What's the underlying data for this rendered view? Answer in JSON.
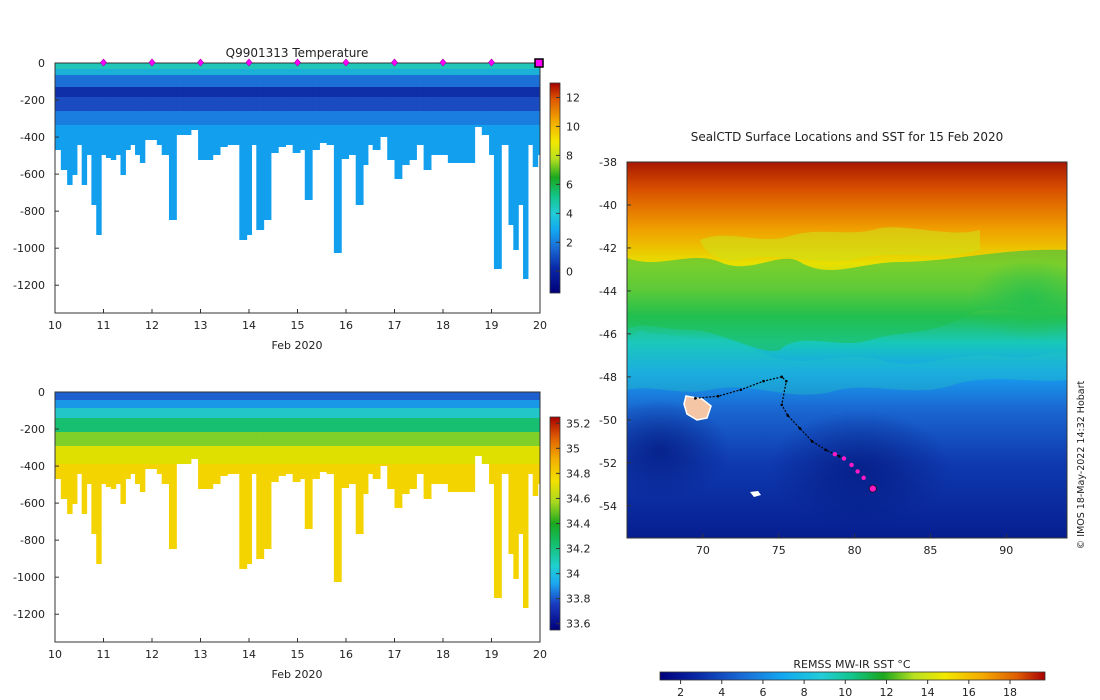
{
  "chart_data": [
    {
      "type": "heatmap",
      "name": "temperature-section",
      "title": "Q9901313  Temperature",
      "xlabel": "Feb 2020",
      "ylabel": "",
      "xlim": [
        10,
        20
      ],
      "ylim": [
        -1350,
        0
      ],
      "xticks": [
        "10",
        "11",
        "12",
        "13",
        "14",
        "15",
        "16",
        "17",
        "18",
        "19",
        "20"
      ],
      "yticks": [
        "0",
        "-200",
        "-400",
        "-600",
        "-800",
        "-1000",
        "-1200"
      ],
      "colorbar": {
        "ticks": [
          "12",
          "10",
          "8",
          "6",
          "4",
          "2",
          "0"
        ],
        "min": -1.5,
        "max": 13
      },
      "markers_days": [
        11,
        12,
        13,
        14,
        15,
        16,
        17,
        18,
        19
      ],
      "last_marker_day": 20
    },
    {
      "type": "heatmap",
      "name": "salinity-section",
      "title": "",
      "xlabel": "Feb 2020",
      "xlim": [
        10,
        20
      ],
      "ylim": [
        -1350,
        0
      ],
      "xticks": [
        "10",
        "11",
        "12",
        "13",
        "14",
        "15",
        "16",
        "17",
        "18",
        "19",
        "20"
      ],
      "yticks": [
        "0",
        "-200",
        "-400",
        "-600",
        "-800",
        "-1000",
        "-1200"
      ],
      "colorbar": {
        "ticks": [
          "35.2",
          "35",
          "34.8",
          "34.6",
          "34.4",
          "34.2",
          "34",
          "33.8",
          "33.6"
        ],
        "min": 33.55,
        "max": 35.25
      }
    },
    {
      "type": "heatmap",
      "name": "sst-map",
      "title": "SealCTD Surface Locations and SST for 15 Feb 2020",
      "xlim": [
        65,
        94
      ],
      "ylim": [
        -55.5,
        -38
      ],
      "xticks": [
        "70",
        "75",
        "80",
        "85",
        "90"
      ],
      "yticks": [
        "-38",
        "-40",
        "-42",
        "-44",
        "-46",
        "-48",
        "-50",
        "-52",
        "-54"
      ],
      "colorbar": {
        "label": "REMSS MW-IR SST °C",
        "ticks": [
          "2",
          "4",
          "6",
          "8",
          "10",
          "12",
          "14",
          "16",
          "18"
        ],
        "min": 1,
        "max": 19.7
      },
      "track": [
        [
          69.5,
          -49.0
        ],
        [
          71,
          -48.9
        ],
        [
          72.5,
          -48.6
        ],
        [
          74,
          -48.2
        ],
        [
          75.2,
          -48.0
        ],
        [
          75.5,
          -48.2
        ],
        [
          75.2,
          -49.3
        ],
        [
          75.6,
          -49.8
        ],
        [
          76.4,
          -50.4
        ],
        [
          77.2,
          -51.0
        ],
        [
          78.1,
          -51.4
        ],
        [
          79.0,
          -51.7
        ]
      ],
      "highlighted_positions": [
        [
          78.7,
          -51.6
        ],
        [
          79.3,
          -51.8
        ],
        [
          79.8,
          -52.1
        ],
        [
          80.2,
          -52.4
        ],
        [
          80.6,
          -52.7
        ],
        [
          81.2,
          -53.2
        ]
      ],
      "credit": "© IMOS 18-May-2022 14:32 Hobart"
    }
  ]
}
